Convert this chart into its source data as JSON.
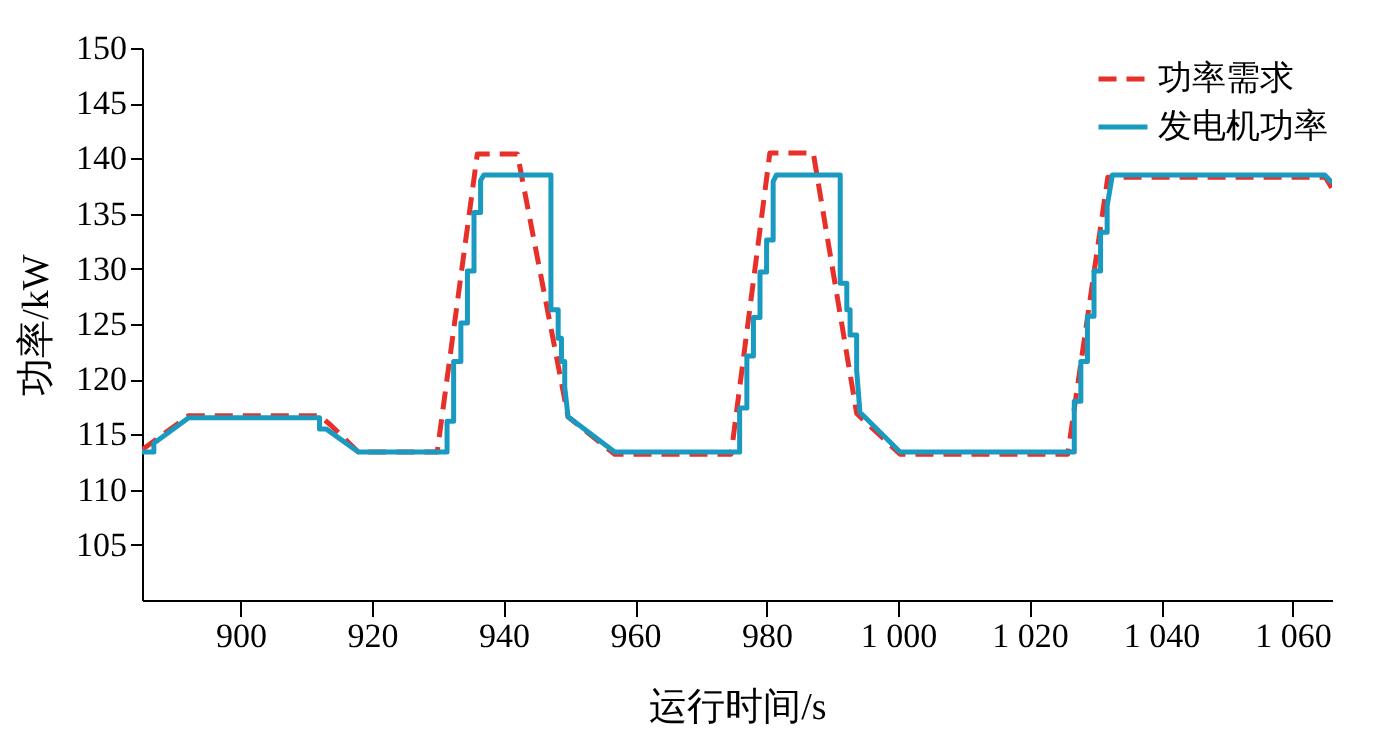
{
  "chart_data": {
    "type": "line",
    "xlabel": "运行时间/s",
    "ylabel": "功率/kW",
    "xlim": [
      885,
      1066
    ],
    "ylim": [
      100,
      150
    ],
    "xticks": [
      900,
      920,
      940,
      960,
      980,
      {
        "value": 1000,
        "label": "1 000"
      },
      {
        "value": 1020,
        "label": "1 020"
      },
      {
        "value": 1040,
        "label": "1 040"
      },
      {
        "value": 1060,
        "label": "1 060"
      }
    ],
    "yticks": [
      105,
      110,
      115,
      120,
      125,
      130,
      135,
      140,
      145,
      150
    ],
    "grid": false,
    "legend": "top right",
    "marker": "none",
    "series": [
      {
        "name": "功率需求",
        "color": "#e8302a",
        "line_style": "dashed",
        "x": [
          885,
          892.1,
          912,
          913.6,
          917.9,
          929.9,
          936,
          942.1,
          949.8,
          956.9,
          974.6,
          980.5,
          987.1,
          993.7,
          1000.3,
          1025.8,
          1031.9,
          1065,
          1066
        ],
        "values": [
          113.6,
          116.7,
          116.7,
          115.9,
          113.4,
          113.4,
          140.4,
          140.4,
          116.6,
          113.2,
          113.2,
          140.5,
          140.5,
          116.9,
          113.2,
          113.2,
          138.3,
          138.3,
          137.3
        ]
      },
      {
        "name": "发电机功率",
        "color": "#1a9ac0",
        "line_style": "solid",
        "x": [
          885,
          886.8,
          886.8,
          892.1,
          912,
          912,
          913,
          917.9,
          931.4,
          931.4,
          932.4,
          932.4,
          933.5,
          933.5,
          934.5,
          934.5,
          935.5,
          935.5,
          936.5,
          936.5,
          937,
          947.2,
          947.2,
          948.3,
          948.3,
          948.8,
          948.8,
          949.3,
          949.3,
          949.8,
          956.9,
          975.9,
          975.9,
          977,
          977,
          978,
          978,
          979,
          979,
          980,
          980,
          981,
          981,
          981.5,
          991.2,
          991.2,
          992.2,
          992.2,
          992.7,
          992.7,
          993.7,
          993.7,
          994.2,
          1000.3,
          1026.8,
          1026.8,
          1027.8,
          1027.8,
          1028.8,
          1028.8,
          1029.8,
          1029.8,
          1030.8,
          1030.8,
          1031.8,
          1031.8,
          1032.6,
          1064.9,
          1066
        ],
        "values": [
          113.4,
          113.4,
          114.2,
          116.5,
          116.5,
          115.5,
          115.5,
          113.4,
          113.4,
          116.2,
          116.2,
          121.6,
          121.6,
          125.1,
          125.1,
          129.8,
          129.8,
          135.1,
          135.1,
          138,
          138.5,
          138.5,
          126.3,
          126.3,
          123.7,
          123.7,
          121.6,
          121.6,
          119.3,
          116.6,
          113.4,
          113.4,
          117.4,
          117.4,
          122.1,
          122.1,
          125.6,
          125.6,
          129.7,
          129.7,
          132.6,
          132.6,
          137.9,
          138.5,
          138.5,
          128.7,
          128.7,
          126.3,
          126.3,
          124,
          124,
          120.8,
          117,
          113.4,
          113.4,
          118,
          118,
          121.6,
          121.6,
          125.7,
          125.7,
          129.8,
          129.8,
          133.3,
          133.3,
          135.7,
          138.5,
          138.5,
          137.8
        ]
      }
    ]
  }
}
